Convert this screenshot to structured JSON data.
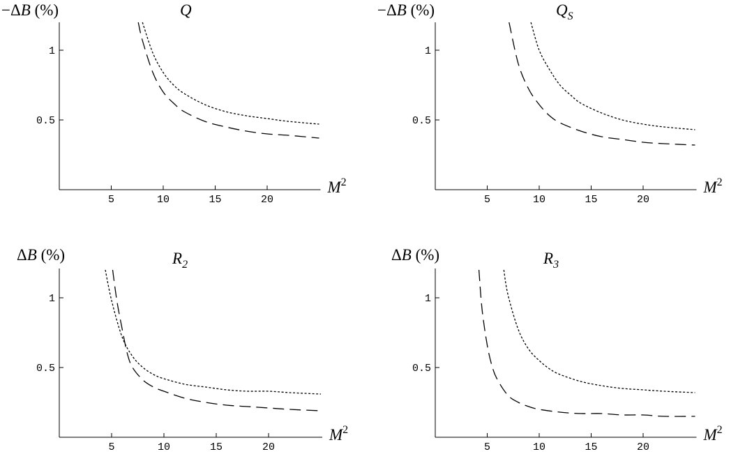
{
  "chart_data": [
    {
      "type": "line",
      "title": "Q",
      "title_sub": "",
      "ylabel": "−ΔB (%)",
      "xlabel": "M",
      "xlabel_sup": "2",
      "xlim": [
        0,
        25
      ],
      "ylim": [
        0,
        1.2
      ],
      "x_ticks": [
        5,
        10,
        15,
        20
      ],
      "x_tick_labels": [
        "5",
        "10",
        "15",
        "20"
      ],
      "y_ticks": [
        0.5,
        1
      ],
      "y_tick_labels": [
        "0.5",
        "1"
      ],
      "series": [
        {
          "style": "dotted",
          "x": [
            8,
            9,
            10,
            11,
            12,
            14,
            16,
            18,
            20,
            22,
            25
          ],
          "y": [
            1.2,
            0.98,
            0.84,
            0.75,
            0.69,
            0.61,
            0.56,
            0.53,
            0.51,
            0.49,
            0.47
          ]
        },
        {
          "style": "dashed",
          "x": [
            7.6,
            8,
            9,
            10,
            11,
            12,
            14,
            16,
            18,
            20,
            22,
            25
          ],
          "y": [
            1.2,
            1.07,
            0.84,
            0.7,
            0.62,
            0.56,
            0.49,
            0.45,
            0.42,
            0.4,
            0.39,
            0.37
          ]
        }
      ]
    },
    {
      "type": "line",
      "title": "Q",
      "title_sub": "S",
      "ylabel": "−ΔB (%)",
      "xlabel": "M",
      "xlabel_sup": "2",
      "xlim": [
        0,
        25
      ],
      "ylim": [
        0,
        1.2
      ],
      "x_ticks": [
        5,
        10,
        15,
        20
      ],
      "x_tick_labels": [
        "5",
        "10",
        "15",
        "20"
      ],
      "y_ticks": [
        0.5,
        1
      ],
      "y_tick_labels": [
        "0.5",
        "1"
      ],
      "series": [
        {
          "style": "dotted",
          "x": [
            9.2,
            10,
            11,
            12,
            13,
            14,
            16,
            18,
            20,
            22,
            25
          ],
          "y": [
            1.2,
            1.0,
            0.86,
            0.75,
            0.68,
            0.62,
            0.55,
            0.5,
            0.47,
            0.45,
            0.43
          ]
        },
        {
          "style": "dashed",
          "x": [
            7.1,
            8,
            9,
            10,
            11,
            12,
            14,
            16,
            18,
            20,
            22,
            25
          ],
          "y": [
            1.2,
            0.9,
            0.72,
            0.61,
            0.53,
            0.48,
            0.42,
            0.38,
            0.36,
            0.34,
            0.33,
            0.32
          ]
        }
      ]
    },
    {
      "type": "line",
      "title": "R",
      "title_sub": "2",
      "ylabel": "ΔB (%)",
      "xlabel": "M",
      "xlabel_sup": "2",
      "xlim": [
        0,
        25
      ],
      "ylim": [
        0,
        1.2
      ],
      "x_ticks": [
        5,
        10,
        15,
        20
      ],
      "x_tick_labels": [
        "5",
        "10",
        "15",
        "20"
      ],
      "y_ticks": [
        0.5,
        1
      ],
      "y_tick_labels": [
        "0.5",
        "1"
      ],
      "series": [
        {
          "style": "dotted",
          "x": [
            4.4,
            5,
            6,
            7,
            8,
            9,
            10,
            12,
            14,
            16,
            18,
            20,
            22,
            25
          ],
          "y": [
            1.2,
            0.98,
            0.72,
            0.58,
            0.5,
            0.45,
            0.42,
            0.38,
            0.36,
            0.34,
            0.33,
            0.33,
            0.32,
            0.31
          ]
        },
        {
          "style": "dashed",
          "x": [
            5.1,
            5.5,
            6,
            6.5,
            7,
            8,
            9,
            10,
            12,
            14,
            16,
            18,
            20,
            22,
            25
          ],
          "y": [
            1.2,
            0.98,
            0.78,
            0.6,
            0.5,
            0.41,
            0.36,
            0.33,
            0.28,
            0.25,
            0.23,
            0.22,
            0.21,
            0.2,
            0.19
          ]
        }
      ]
    },
    {
      "type": "line",
      "title": "R",
      "title_sub": "3",
      "ylabel": "ΔB (%)",
      "xlabel": "M",
      "xlabel_sup": "2",
      "xlim": [
        0,
        25
      ],
      "ylim": [
        0,
        1.2
      ],
      "x_ticks": [
        5,
        10,
        15,
        20
      ],
      "x_tick_labels": [
        "5",
        "10",
        "15",
        "20"
      ],
      "y_ticks": [
        0.5,
        1
      ],
      "y_tick_labels": [
        "0.5",
        "1"
      ],
      "series": [
        {
          "style": "dotted",
          "x": [
            6.6,
            7,
            8,
            9,
            10,
            11,
            12,
            14,
            16,
            18,
            20,
            22,
            25
          ],
          "y": [
            1.2,
            1.02,
            0.77,
            0.63,
            0.55,
            0.49,
            0.45,
            0.4,
            0.37,
            0.35,
            0.34,
            0.33,
            0.32
          ]
        },
        {
          "style": "dashed",
          "x": [
            4.2,
            4.5,
            5,
            5.5,
            6,
            7,
            8,
            9,
            10,
            12,
            14,
            16,
            18,
            20,
            22,
            25
          ],
          "y": [
            1.2,
            0.92,
            0.66,
            0.5,
            0.41,
            0.3,
            0.25,
            0.22,
            0.2,
            0.18,
            0.17,
            0.17,
            0.16,
            0.16,
            0.15,
            0.15
          ]
        }
      ]
    }
  ]
}
